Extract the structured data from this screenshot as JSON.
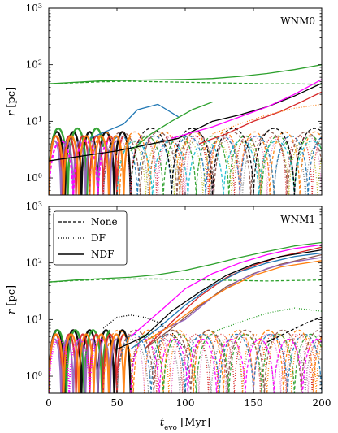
{
  "chart_data": [
    {
      "type": "line",
      "panel_label": "WNM0",
      "xlim": [
        0,
        200
      ],
      "ylim": [
        0.5,
        1000
      ],
      "yscale": "log",
      "xticks": [
        "0",
        "50",
        "100",
        "150",
        "200"
      ],
      "yticks": [
        {
          "value": 1,
          "exp": "0"
        },
        {
          "value": 10,
          "exp": "1"
        },
        {
          "value": 100,
          "exp": "2"
        },
        {
          "value": 1000,
          "exp": "3"
        }
      ],
      "ylabel_main": "r",
      "ylabel_unit": "[pc]",
      "show_xtick_labels": false,
      "series": [
        {
          "color": "#2ca02c",
          "style": "solid",
          "width": 1.3,
          "x": [
            0,
            20,
            40,
            60,
            80,
            100,
            120,
            140,
            160,
            180,
            200
          ],
          "y": [
            46,
            49,
            52,
            53,
            54,
            55,
            57,
            62,
            70,
            82,
            100
          ]
        },
        {
          "color": "#2ca02c",
          "style": "dashed",
          "width": 1.3,
          "x": [
            0,
            20,
            40,
            60,
            80,
            100,
            120,
            140,
            160,
            180,
            200
          ],
          "y": [
            46,
            48,
            50,
            51,
            50,
            49,
            48,
            47,
            46,
            46,
            45
          ]
        },
        {
          "color": "#000000",
          "style": "solid",
          "width": 1.3,
          "x": [
            0,
            50,
            95,
            120,
            140,
            160,
            180,
            200
          ],
          "y": [
            2,
            3,
            5,
            10,
            13,
            18,
            28,
            47
          ]
        },
        {
          "color": "#ff00ff",
          "style": "solid",
          "width": 1.3,
          "x": [
            90,
            120,
            140,
            160,
            180,
            200
          ],
          "y": [
            5,
            8,
            12,
            18,
            30,
            55
          ]
        },
        {
          "color": "#d62728",
          "style": "solid",
          "width": 1.3,
          "x": [
            110,
            130,
            150,
            170,
            185,
            200
          ],
          "y": [
            4,
            6,
            10,
            15,
            22,
            33
          ]
        },
        {
          "color": "#ff7f0e",
          "style": "dotted",
          "width": 1.3,
          "x": [
            120,
            140,
            160,
            180,
            200
          ],
          "y": [
            6,
            9,
            13,
            17,
            20
          ]
        },
        {
          "color": "#2ca02c",
          "style": "solid",
          "width": 1.3,
          "x": [
            60,
            75,
            90,
            105,
            120
          ],
          "y": [
            3,
            6,
            10,
            16,
            22
          ]
        },
        {
          "color": "#1f77b4",
          "style": "solid",
          "width": 1.3,
          "x": [
            30,
            55,
            65,
            80,
            95
          ],
          "y": [
            5,
            9,
            16,
            20,
            12
          ]
        }
      ],
      "oscillations": [
        {
          "color": "#000000",
          "style": "solid",
          "amp": 6,
          "period": 12,
          "x0": 0,
          "x1": 60,
          "width": 2.4
        },
        {
          "color": "#2ca02c",
          "style": "solid",
          "amp": 7,
          "period": 14,
          "x0": 0,
          "x1": 40,
          "width": 2.4
        },
        {
          "color": "#d62728",
          "style": "solid",
          "amp": 5,
          "period": 10,
          "x0": 0,
          "x1": 55,
          "width": 2.0
        },
        {
          "color": "#9467bd",
          "style": "solid",
          "amp": 4,
          "period": 9,
          "x0": 0,
          "x1": 50,
          "width": 2.0
        },
        {
          "color": "#ff7f0e",
          "style": "dashed",
          "amp": 6,
          "period": 22,
          "x0": 30,
          "x1": 200,
          "width": 1.3
        },
        {
          "color": "#1f77b4",
          "style": "dashed",
          "amp": 5,
          "period": 25,
          "x0": 40,
          "x1": 200,
          "width": 1.3
        },
        {
          "color": "#8c564b",
          "style": "dashed",
          "amp": 6,
          "period": 27,
          "x0": 40,
          "x1": 200,
          "width": 1.3
        },
        {
          "color": "#2ca02c",
          "style": "dashed",
          "amp": 5,
          "period": 24,
          "x0": 60,
          "x1": 200,
          "width": 1.3
        },
        {
          "color": "#e377c2",
          "style": "dotted",
          "amp": 5,
          "period": 20,
          "x0": 40,
          "x1": 200,
          "width": 1.3
        },
        {
          "color": "#7f7f7f",
          "style": "dotted",
          "amp": 4,
          "period": 23,
          "x0": 50,
          "x1": 200,
          "width": 1.3
        },
        {
          "color": "#bcbd22",
          "style": "dotted",
          "amp": 4,
          "period": 21,
          "x0": 50,
          "x1": 200,
          "width": 1.3
        },
        {
          "color": "#17becf",
          "style": "dashed",
          "amp": 4,
          "period": 26,
          "x0": 50,
          "x1": 200,
          "width": 1.3
        },
        {
          "color": "#000000",
          "style": "dashed",
          "amp": 7,
          "period": 30,
          "x0": 60,
          "x1": 200,
          "width": 1.3
        },
        {
          "color": "#d62728",
          "style": "dotted",
          "amp": 5,
          "period": 19,
          "x0": 60,
          "x1": 200,
          "width": 1.3
        },
        {
          "color": "#ff00ff",
          "style": "dashed",
          "amp": 4,
          "period": 18,
          "x0": 0,
          "x1": 45,
          "width": 2.2
        },
        {
          "color": "#ff7f0e",
          "style": "solid",
          "amp": 5,
          "period": 11,
          "x0": 0,
          "x1": 60,
          "width": 2.2
        }
      ]
    },
    {
      "type": "line",
      "panel_label": "WNM1",
      "xlim": [
        0,
        200
      ],
      "ylim": [
        0.5,
        1000
      ],
      "yscale": "log",
      "xticks": [
        "0",
        "50",
        "100",
        "150",
        "200"
      ],
      "yticks": [
        {
          "value": 1,
          "exp": "0"
        },
        {
          "value": 10,
          "exp": "1"
        },
        {
          "value": 100,
          "exp": "2"
        },
        {
          "value": 1000,
          "exp": "3"
        }
      ],
      "ylabel_main": "r",
      "ylabel_unit": "[pc]",
      "xlabel_main": "t",
      "xlabel_sub": "evo",
      "xlabel_unit": "[Myr]",
      "show_xtick_labels": true,
      "legend": [
        "None",
        "DF",
        "NDF"
      ],
      "series": [
        {
          "color": "#2ca02c",
          "style": "solid",
          "width": 1.3,
          "x": [
            0,
            20,
            40,
            60,
            80,
            100,
            120,
            140,
            160,
            180,
            200
          ],
          "y": [
            46,
            50,
            53,
            56,
            62,
            74,
            95,
            125,
            160,
            200,
            230
          ]
        },
        {
          "color": "#2ca02c",
          "style": "dashed",
          "width": 1.3,
          "x": [
            0,
            20,
            40,
            60,
            80,
            100,
            120,
            140,
            160,
            180,
            200
          ],
          "y": [
            46,
            49,
            51,
            52,
            52,
            51,
            50,
            49,
            48,
            49,
            50
          ]
        },
        {
          "color": "#ff00ff",
          "style": "solid",
          "width": 1.3,
          "x": [
            60,
            80,
            100,
            120,
            140,
            160,
            180,
            200
          ],
          "y": [
            5,
            13,
            35,
            65,
            100,
            140,
            180,
            210
          ]
        },
        {
          "color": "#d62728",
          "style": "solid",
          "width": 1.3,
          "x": [
            70,
            90,
            110,
            130,
            150,
            170,
            200
          ],
          "y": [
            3,
            9,
            25,
            55,
            90,
            130,
            190
          ]
        },
        {
          "color": "#000000",
          "style": "solid",
          "width": 1.3,
          "x": [
            50,
            70,
            90,
            110,
            130,
            150,
            170,
            200
          ],
          "y": [
            3,
            5,
            14,
            30,
            60,
            95,
            130,
            170
          ]
        },
        {
          "color": "#1f77b4",
          "style": "solid",
          "width": 1.3,
          "x": [
            60,
            80,
            100,
            120,
            140,
            160,
            180,
            200
          ],
          "y": [
            3,
            7,
            18,
            40,
            70,
            100,
            130,
            150
          ]
        },
        {
          "color": "#8c564b",
          "style": "solid",
          "width": 1.3,
          "x": [
            70,
            90,
            110,
            130,
            150,
            170,
            200
          ],
          "y": [
            3,
            7,
            17,
            38,
            65,
            95,
            140
          ]
        },
        {
          "color": "#9467bd",
          "style": "solid",
          "width": 1.3,
          "x": [
            80,
            100,
            120,
            140,
            160,
            180,
            200
          ],
          "y": [
            6,
            10,
            25,
            50,
            80,
            105,
            125
          ]
        },
        {
          "color": "#ff7f0e",
          "style": "solid",
          "width": 1.3,
          "x": [
            70,
            90,
            110,
            130,
            150,
            170,
            200
          ],
          "y": [
            4,
            8,
            18,
            35,
            60,
            85,
            110
          ]
        },
        {
          "color": "#000000",
          "style": "dotted",
          "width": 1.3,
          "x": [
            40,
            50,
            60,
            70,
            80,
            90,
            100
          ],
          "y": [
            7,
            11,
            12,
            11,
            9,
            6,
            3
          ]
        },
        {
          "color": "#2ca02c",
          "style": "dotted",
          "width": 1.3,
          "x": [
            120,
            140,
            160,
            180,
            200
          ],
          "y": [
            6,
            9,
            13,
            16,
            14
          ]
        },
        {
          "color": "#000000",
          "style": "dashed",
          "width": 1.3,
          "x": [
            160,
            175,
            190,
            200
          ],
          "y": [
            4,
            6,
            9,
            11
          ]
        }
      ],
      "oscillations": [
        {
          "color": "#000000",
          "style": "solid",
          "amp": 6,
          "period": 12,
          "x0": 0,
          "x1": 60,
          "width": 2.4
        },
        {
          "color": "#2ca02c",
          "style": "solid",
          "amp": 6,
          "period": 13,
          "x0": 0,
          "x1": 45,
          "width": 2.4
        },
        {
          "color": "#d62728",
          "style": "solid",
          "amp": 5,
          "period": 10,
          "x0": 0,
          "x1": 55,
          "width": 2.0
        },
        {
          "color": "#9467bd",
          "style": "solid",
          "amp": 4,
          "period": 9,
          "x0": 0,
          "x1": 50,
          "width": 2.0
        },
        {
          "color": "#ff7f0e",
          "style": "solid",
          "amp": 5,
          "period": 11,
          "x0": 0,
          "x1": 60,
          "width": 2.2
        },
        {
          "color": "#ff00ff",
          "style": "dotted",
          "amp": 4,
          "period": 15,
          "x0": 0,
          "x1": 40,
          "width": 2.2
        },
        {
          "color": "#ff7f0e",
          "style": "dashed",
          "amp": 6,
          "period": 22,
          "x0": 40,
          "x1": 200,
          "width": 1.3
        },
        {
          "color": "#1f77b4",
          "style": "dashed",
          "amp": 5,
          "period": 25,
          "x0": 50,
          "x1": 200,
          "width": 1.3
        },
        {
          "color": "#8c564b",
          "style": "dashed",
          "amp": 6,
          "period": 27,
          "x0": 50,
          "x1": 200,
          "width": 1.3
        },
        {
          "color": "#2ca02c",
          "style": "dashed",
          "amp": 5,
          "period": 24,
          "x0": 60,
          "x1": 200,
          "width": 1.3
        },
        {
          "color": "#e377c2",
          "style": "dotted",
          "amp": 5,
          "period": 20,
          "x0": 50,
          "x1": 200,
          "width": 1.3
        },
        {
          "color": "#7f7f7f",
          "style": "dotted",
          "amp": 4,
          "period": 23,
          "x0": 50,
          "x1": 200,
          "width": 1.3
        },
        {
          "color": "#d62728",
          "style": "dotted",
          "amp": 5,
          "period": 19,
          "x0": 60,
          "x1": 200,
          "width": 1.3
        },
        {
          "color": "#ff00ff",
          "style": "dashed",
          "amp": 4,
          "period": 21,
          "x0": 60,
          "x1": 200,
          "width": 1.3
        },
        {
          "color": "#ff7f0e",
          "style": "dotted",
          "amp": 5,
          "period": 18,
          "x0": 70,
          "x1": 200,
          "width": 1.3
        }
      ]
    }
  ]
}
